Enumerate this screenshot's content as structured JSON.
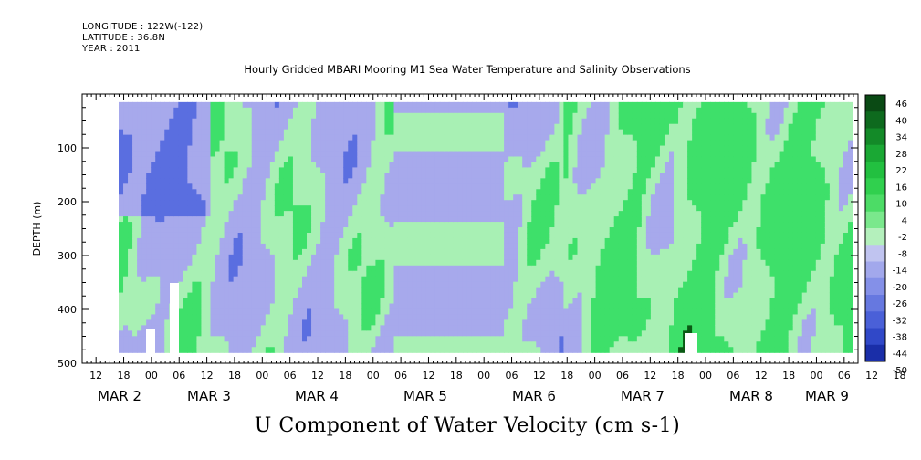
{
  "header": {
    "longitude": "LONGITUDE : 122W(-122)",
    "latitude": "LATITUDE : 36.8N",
    "year": "YEAR : 2011"
  },
  "title": "Hourly Gridded MBARI Mooring M1 Sea Water Temperature and Salinity Observations",
  "variable_title": "U Component of Water Velocity (cm s-1)",
  "chart_data": {
    "type": "heatmap",
    "title": "Hourly Gridded MBARI Mooring M1 Sea Water Temperature and Salinity Observations",
    "variable": "U Component of Water Velocity (cm s-1)",
    "ylabel": "DEPTH (m)",
    "ylim": [
      500,
      0
    ],
    "y_reversed": true,
    "y_ticks": [
      100,
      200,
      300,
      400,
      500
    ],
    "xlim_hours_range": [
      "MAR 2 09:00",
      "MAR 9 09:00"
    ],
    "x_hour_labels": [
      "12",
      "18",
      "00",
      "06",
      "12",
      "18",
      "00",
      "06",
      "12",
      "18",
      "00",
      "06",
      "12",
      "18",
      "00",
      "06",
      "12",
      "18",
      "00",
      "06",
      "12",
      "18",
      "00",
      "06",
      "12",
      "18",
      "00",
      "06",
      "12",
      "18",
      "00",
      "06",
      "12",
      "18",
      "00",
      "06"
    ],
    "x_day_labels": [
      "MAR 2",
      "MAR 3",
      "MAR 4",
      "MAR 5",
      "MAR 6",
      "MAR 7",
      "MAR 8",
      "MAR 9"
    ],
    "colorbar_levels": [
      46,
      40,
      34,
      28,
      22,
      16,
      10,
      4,
      -2,
      -8,
      -14,
      -20,
      -26,
      -32,
      -38,
      -44,
      -50
    ],
    "colorbar_range": [
      -50,
      50
    ],
    "colors": {
      "strong_positive": "#0a5a14",
      "positive": "#3ee06a",
      "weak_positive": "#a8f0b4",
      "weak_negative": "#a7a9ec",
      "negative": "#5a6ee0",
      "strong_negative": "#00004a"
    }
  }
}
